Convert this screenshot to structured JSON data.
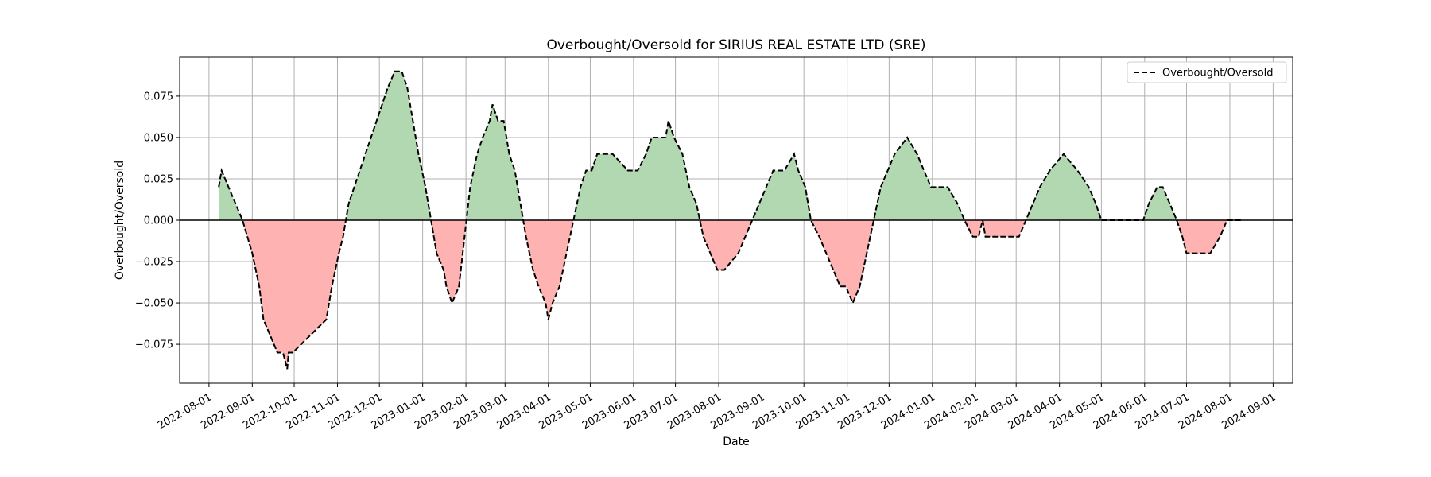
{
  "chart_data": {
    "type": "line",
    "title": "Overbought/Oversold for SIRIUS REAL ESTATE LTD (SRE)",
    "xlabel": "Date",
    "ylabel": "Overbought/Oversold",
    "xlim": [
      "2022-07-11",
      "2024-09-15"
    ],
    "ylim": [
      -0.0985,
      0.0985
    ],
    "x_ticks": [
      "2022-08-01",
      "2022-09-01",
      "2022-10-01",
      "2022-11-01",
      "2022-12-01",
      "2023-01-01",
      "2023-02-01",
      "2023-03-01",
      "2023-04-01",
      "2023-05-01",
      "2023-06-01",
      "2023-07-01",
      "2023-08-01",
      "2023-09-01",
      "2023-10-01",
      "2023-11-01",
      "2023-12-01",
      "2024-01-01",
      "2024-02-01",
      "2024-03-01",
      "2024-04-01",
      "2024-05-01",
      "2024-06-01",
      "2024-07-01",
      "2024-08-01",
      "2024-09-01"
    ],
    "y_ticks": [
      -0.075,
      -0.05,
      -0.025,
      0.0,
      0.025,
      0.05,
      0.075
    ],
    "y_tick_labels": [
      "−0.075",
      "−0.050",
      "−0.025",
      "0.000",
      "0.025",
      "0.050",
      "0.075"
    ],
    "grid": true,
    "legend_position": "top-right",
    "series": [
      {
        "name": "Overbought/Oversold",
        "line_style": "dashed",
        "color": "#000000",
        "x": [
          "2022-08-08",
          "2022-08-10",
          "2022-08-15",
          "2022-08-25",
          "2022-09-01",
          "2022-09-06",
          "2022-09-09",
          "2022-09-14",
          "2022-09-19",
          "2022-09-23",
          "2022-09-26",
          "2022-09-27",
          "2022-09-30",
          "2022-10-24",
          "2022-10-28",
          "2022-11-02",
          "2022-11-05",
          "2022-11-09",
          "2022-11-13",
          "2022-11-17",
          "2022-11-21",
          "2022-11-25",
          "2022-11-29",
          "2022-12-03",
          "2022-12-07",
          "2022-12-12",
          "2022-12-17",
          "2022-12-21",
          "2022-12-25",
          "2022-12-29",
          "2023-01-03",
          "2023-01-07",
          "2023-01-11",
          "2023-01-16",
          "2023-01-18",
          "2023-01-22",
          "2023-01-27",
          "2023-01-31",
          "2023-02-04",
          "2023-02-09",
          "2023-02-13",
          "2023-02-18",
          "2023-02-20",
          "2023-02-24",
          "2023-02-28",
          "2023-03-04",
          "2023-03-08",
          "2023-03-12",
          "2023-03-16",
          "2023-03-21",
          "2023-03-25",
          "2023-03-30",
          "2023-04-01",
          "2023-04-04",
          "2023-04-09",
          "2023-04-14",
          "2023-04-19",
          "2023-04-24",
          "2023-04-28",
          "2023-05-02",
          "2023-05-06",
          "2023-05-10",
          "2023-05-17",
          "2023-05-28",
          "2023-06-04",
          "2023-06-10",
          "2023-06-14",
          "2023-06-24",
          "2023-06-26",
          "2023-06-30",
          "2023-07-06",
          "2023-07-11",
          "2023-07-16",
          "2023-07-21",
          "2023-07-26",
          "2023-07-31",
          "2023-08-05",
          "2023-08-15",
          "2023-08-20",
          "2023-08-25",
          "2023-08-30",
          "2023-09-04",
          "2023-09-09",
          "2023-09-17",
          "2023-09-24",
          "2023-09-27",
          "2023-10-02",
          "2023-10-06",
          "2023-10-12",
          "2023-10-17",
          "2023-10-22",
          "2023-10-27",
          "2023-10-31",
          "2023-11-05",
          "2023-11-10",
          "2023-11-15",
          "2023-11-20",
          "2023-11-25",
          "2023-11-30",
          "2023-12-05",
          "2023-12-14",
          "2023-12-21",
          "2023-12-26",
          "2023-12-31",
          "2024-01-12",
          "2024-01-19",
          "2024-01-24",
          "2024-01-30",
          "2024-02-03",
          "2024-02-06",
          "2024-02-08",
          "2024-02-21",
          "2024-02-27",
          "2024-03-03",
          "2024-03-08",
          "2024-03-13",
          "2024-03-18",
          "2024-03-25",
          "2024-04-04",
          "2024-04-14",
          "2024-04-22",
          "2024-04-27",
          "2024-05-01",
          "2024-05-31",
          "2024-06-04",
          "2024-06-10",
          "2024-06-14",
          "2024-06-19",
          "2024-06-24",
          "2024-06-28",
          "2024-07-01",
          "2024-07-03",
          "2024-07-11",
          "2024-07-18",
          "2024-07-25",
          "2024-07-30",
          "2024-08-09"
        ],
        "y": [
          0.02,
          0.03,
          0.02,
          0.0,
          -0.02,
          -0.04,
          -0.06,
          -0.07,
          -0.08,
          -0.08,
          -0.09,
          -0.08,
          -0.08,
          -0.06,
          -0.04,
          -0.02,
          -0.01,
          0.01,
          0.02,
          0.03,
          0.04,
          0.05,
          0.06,
          0.07,
          0.08,
          0.09,
          0.09,
          0.08,
          0.06,
          0.04,
          0.02,
          0.0,
          -0.02,
          -0.03,
          -0.04,
          -0.05,
          -0.04,
          -0.01,
          0.02,
          0.04,
          0.05,
          0.06,
          0.07,
          0.06,
          0.06,
          0.04,
          0.03,
          0.01,
          -0.01,
          -0.03,
          -0.04,
          -0.05,
          -0.06,
          -0.05,
          -0.04,
          -0.02,
          0.0,
          0.02,
          0.03,
          0.03,
          0.04,
          0.04,
          0.04,
          0.03,
          0.03,
          0.04,
          0.05,
          0.05,
          0.06,
          0.05,
          0.04,
          0.02,
          0.01,
          -0.01,
          -0.02,
          -0.03,
          -0.03,
          -0.02,
          -0.01,
          0.0,
          0.01,
          0.02,
          0.03,
          0.03,
          0.04,
          0.03,
          0.02,
          0.0,
          -0.01,
          -0.02,
          -0.03,
          -0.04,
          -0.04,
          -0.05,
          -0.04,
          -0.02,
          0.0,
          0.02,
          0.03,
          0.04,
          0.05,
          0.04,
          0.03,
          0.02,
          0.02,
          0.01,
          0.0,
          -0.01,
          -0.01,
          0.0,
          -0.01,
          -0.01,
          -0.01,
          -0.01,
          0.0,
          0.01,
          0.02,
          0.03,
          0.04,
          0.03,
          0.02,
          0.01,
          0.0,
          0.0,
          0.01,
          0.02,
          0.02,
          0.01,
          0.0,
          -0.01,
          -0.02,
          -0.02,
          -0.02,
          -0.02,
          -0.01,
          0.0,
          0.0
        ]
      }
    ],
    "fill_positive_color": "#b2d8b2",
    "fill_negative_color": "#ffb2b2",
    "zero_line": true
  }
}
